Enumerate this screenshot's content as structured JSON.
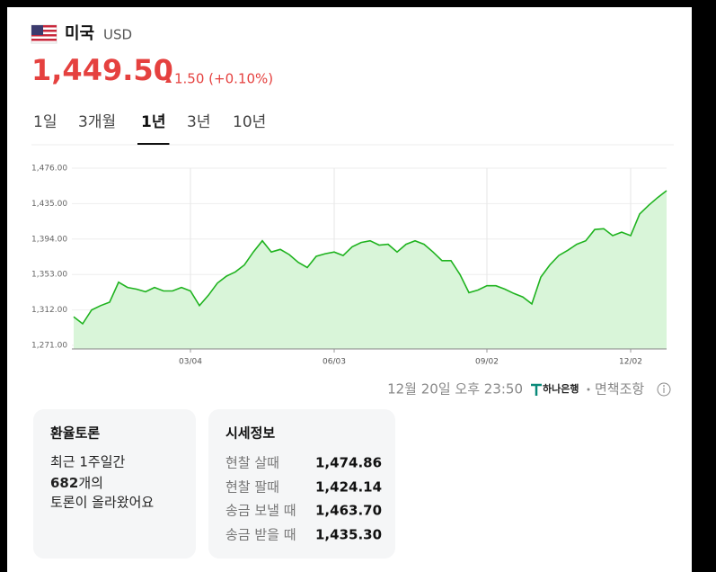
{
  "header": {
    "country": "미국",
    "currency": "USD",
    "price": "1,449.50",
    "change": "1.50 (+0.10%)"
  },
  "tabs": {
    "items": [
      "1일",
      "3개월",
      "1년",
      "3년",
      "10년"
    ],
    "selected": 2
  },
  "chart_data": {
    "type": "line",
    "color": "#1fb31f",
    "fill": "#d9f5d9",
    "categories": [
      null,
      null,
      null,
      null,
      null,
      null,
      null,
      null,
      null,
      null,
      null,
      null,
      null,
      "03/04",
      null,
      null,
      null,
      null,
      null,
      null,
      null,
      null,
      null,
      null,
      null,
      null,
      null,
      null,
      null,
      "06/03",
      null,
      null,
      null,
      null,
      null,
      null,
      null,
      null,
      null,
      null,
      null,
      null,
      null,
      null,
      null,
      null,
      "09/02",
      null,
      null,
      null,
      null,
      null,
      null,
      null,
      null,
      null,
      null,
      null,
      null,
      null,
      null,
      null,
      "12/02",
      null,
      null,
      null,
      null
    ],
    "values": [
      1304,
      1296,
      1312,
      1317,
      1321,
      1344,
      1338,
      1336,
      1333,
      1338,
      1334,
      1334,
      1338,
      1334,
      1317,
      1329,
      1343,
      1351,
      1356,
      1364,
      1379,
      1392,
      1379,
      1382,
      1376,
      1367,
      1361,
      1374,
      1377,
      1379,
      1375,
      1385,
      1390,
      1392,
      1387,
      1388,
      1379,
      1388,
      1392,
      1388,
      1379,
      1369,
      1369,
      1353,
      1332,
      1335,
      1340,
      1340,
      1336,
      1331,
      1327,
      1319,
      1350,
      1364,
      1375,
      1381,
      1388,
      1392,
      1405,
      1406,
      1398,
      1402,
      1398,
      1423,
      1433,
      1442,
      1450
    ],
    "ylim": [
      1271,
      1476
    ],
    "yticks": [
      {
        "value": 1476,
        "label": "1,476.00"
      },
      {
        "value": 1435,
        "label": "1,435.00"
      },
      {
        "value": 1394,
        "label": "1,394.00"
      },
      {
        "value": 1353,
        "label": "1,353.00"
      },
      {
        "value": 1312,
        "label": "1,312.00"
      },
      {
        "value": 1271,
        "label": "1,271.00"
      }
    ],
    "grid": true
  },
  "footer": {
    "timestamp": "12월 20일 오후 23:50",
    "bank": "하나은행",
    "disclaimer": "면책조항"
  },
  "discussion": {
    "title": "환율토론",
    "line1": "최근 1주일간",
    "count": "682",
    "count_unit": "개의",
    "line3": "토론이 올라왔어요"
  },
  "quotes": {
    "title": "시세정보",
    "rows": [
      [
        "현찰 살때",
        "1,474.86"
      ],
      [
        "현찰 팔때",
        "1,424.14"
      ],
      [
        "송금 보낼 때",
        "1,463.70"
      ],
      [
        "송금 받을 때",
        "1,435.30"
      ]
    ]
  }
}
